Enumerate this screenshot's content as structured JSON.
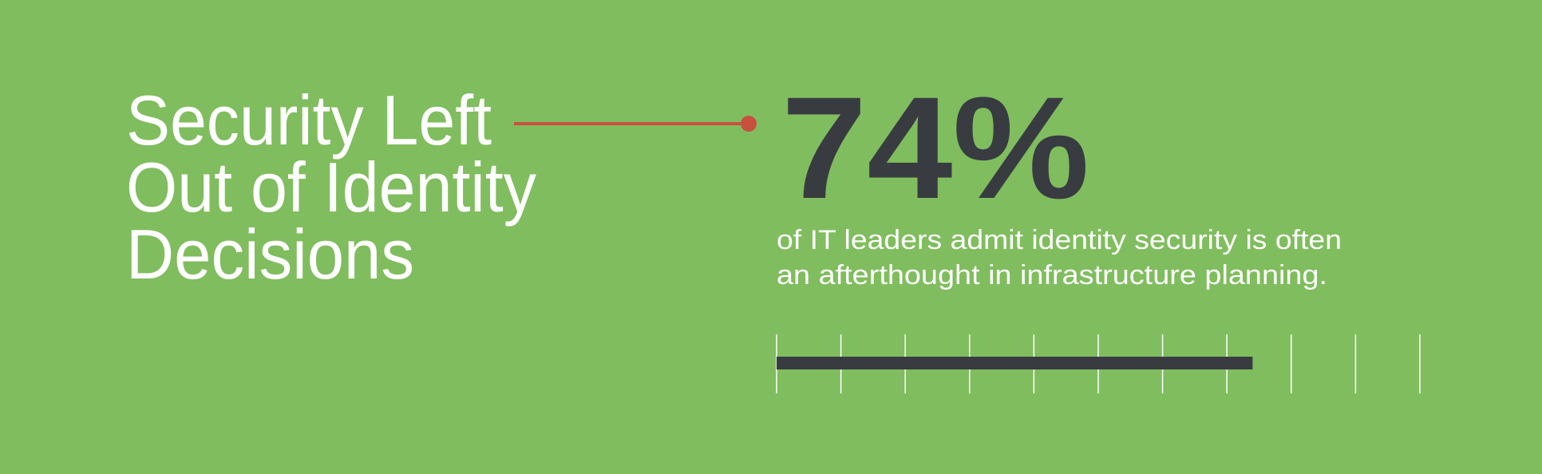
{
  "headline": [
    "Security Left",
    "Out of Identity",
    "Decisions"
  ],
  "stat": {
    "value": 74,
    "label": "74%"
  },
  "description": [
    "of IT leaders admit identity security is often",
    "an afterthought in infrastructure planning."
  ],
  "bar": {
    "xlim": [
      0,
      100
    ],
    "xticks": [
      0,
      10,
      20,
      30,
      40,
      50,
      60,
      70,
      80,
      90,
      100
    ],
    "color": "#383c41"
  }
}
